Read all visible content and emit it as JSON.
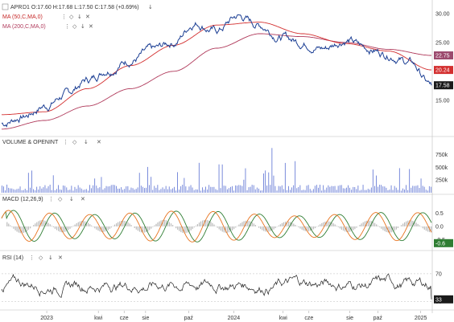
{
  "colors": {
    "price": "#1c3f94",
    "ma50": "#d32f2f",
    "ma200": "#b03a5b",
    "volume": "#6b7fd7",
    "macd": "#e8731e",
    "signal": "#2e7d32",
    "hist": "#9e9e9e",
    "rsi": "#222222",
    "grid": "#e6e6e6"
  },
  "legend": {
    "main_title": "APR",
    "main_ohlc": "D1 O:17.60 H:17.68 L:17.50 C:17.58 (+0.69%)",
    "ma50": "MA (50,C,MA,0)",
    "ma200": "MA (200,C,MA,0)",
    "volume": "VOLUME & OPENINT",
    "macd": "MACD (12,26,9)",
    "rsi": "RSI (14)"
  },
  "icons": [
    "dots-icon",
    "collapse-icon",
    "arrow-down-icon",
    "close-icon"
  ],
  "chart_data": {
    "type": "line",
    "x_tick_labels": [
      "2023",
      "kwi",
      "cze",
      "sie",
      "paź",
      "2024",
      "kwi",
      "cze",
      "sie",
      "paź",
      "2025"
    ],
    "price_panel": {
      "y_ticks": [
        "30.00",
        "25.00",
        "20.00",
        "15.00"
      ],
      "ylim": [
        9,
        31.5
      ],
      "last_price": "17.58",
      "ma50_value": "20.24",
      "ma200_value": "22.75",
      "close_anchors": [
        [
          0,
          11.0
        ],
        [
          0.05,
          12.2
        ],
        [
          0.1,
          14.0
        ],
        [
          0.15,
          16.0
        ],
        [
          0.2,
          18.5
        ],
        [
          0.25,
          20.5
        ],
        [
          0.3,
          22.0
        ],
        [
          0.35,
          23.5
        ],
        [
          0.4,
          25.0
        ],
        [
          0.45,
          28.5
        ],
        [
          0.5,
          27.0
        ],
        [
          0.55,
          29.5
        ],
        [
          0.6,
          28.0
        ],
        [
          0.65,
          26.0
        ],
        [
          0.7,
          25.0
        ],
        [
          0.75,
          24.0
        ],
        [
          0.8,
          25.5
        ],
        [
          0.85,
          24.0
        ],
        [
          0.9,
          23.0
        ],
        [
          0.95,
          21.5
        ],
        [
          1.0,
          17.58
        ]
      ],
      "ma50_anchors": [
        [
          0,
          12.5
        ],
        [
          0.1,
          13.0
        ],
        [
          0.2,
          17.0
        ],
        [
          0.3,
          21.0
        ],
        [
          0.4,
          24.5
        ],
        [
          0.5,
          28.0
        ],
        [
          0.6,
          28.5
        ],
        [
          0.7,
          26.5
        ],
        [
          0.8,
          24.8
        ],
        [
          0.9,
          23.5
        ],
        [
          1.0,
          20.24
        ]
      ],
      "ma200_anchors": [
        [
          0,
          10.0
        ],
        [
          0.1,
          11.5
        ],
        [
          0.2,
          14.0
        ],
        [
          0.3,
          17.0
        ],
        [
          0.4,
          20.0
        ],
        [
          0.5,
          24.0
        ],
        [
          0.6,
          26.5
        ],
        [
          0.7,
          26.0
        ],
        [
          0.8,
          25.0
        ],
        [
          0.9,
          23.8
        ],
        [
          1.0,
          22.75
        ]
      ]
    },
    "volume_panel": {
      "y_ticks": [
        "750k",
        "500k",
        "250k"
      ],
      "ylim": [
        0,
        900000
      ]
    },
    "macd_panel": {
      "y_ticks": [
        "0.5",
        "0.0",
        "-0.5"
      ],
      "ylim": [
        -0.85,
        0.85
      ],
      "macd_value": "-0.6",
      "signal_value": "-0.5"
    },
    "rsi_panel": {
      "y_ticks": [
        "70",
        "30"
      ],
      "ylim": [
        20,
        85
      ],
      "rsi_value": "33"
    }
  }
}
